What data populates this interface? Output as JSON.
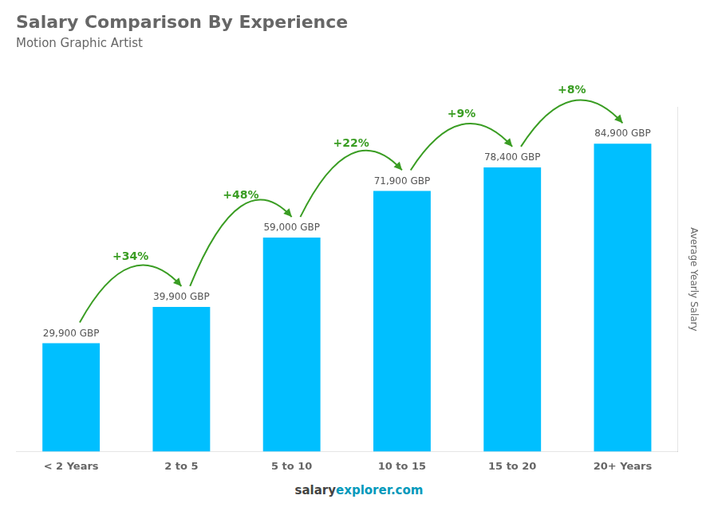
{
  "chart_data": {
    "type": "bar",
    "title": "Salary Comparison By Experience",
    "subtitle": "Motion Graphic Artist",
    "categories": [
      "< 2 Years",
      "2 to 5",
      "5 to 10",
      "10 to 15",
      "15 to 20",
      "20+ Years"
    ],
    "values": [
      29900,
      39900,
      59000,
      71900,
      78400,
      84900
    ],
    "value_labels": [
      "29,900 GBP",
      "39,900 GBP",
      "59,000 GBP",
      "71,900 GBP",
      "78,400 GBP",
      "84,900 GBP"
    ],
    "annotations": [
      "+34%",
      "+48%",
      "+22%",
      "+9%",
      "+8%"
    ],
    "ylabel": "Average Yearly Salary",
    "footer": [
      "salary",
      "explorer.com"
    ],
    "color": "#00BFFF",
    "ylim": [
      0,
      95000
    ],
    "grid": false,
    "data_labels": true,
    "tick_labels": "x"
  }
}
